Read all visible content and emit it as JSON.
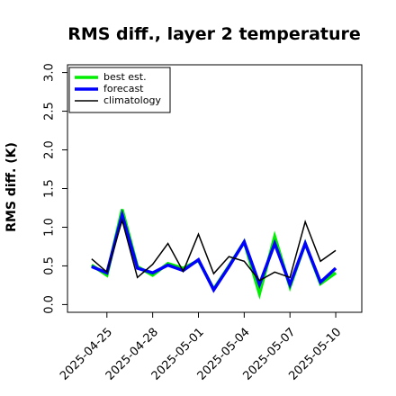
{
  "chart_data": {
    "type": "line",
    "title": "RMS diff., layer 2 temperature",
    "ylabel": "RMS diff. (K)",
    "x": [
      "2025-04-24",
      "2025-04-25",
      "2025-04-26",
      "2025-04-27",
      "2025-04-28",
      "2025-04-29",
      "2025-04-30",
      "2025-05-01",
      "2025-05-02",
      "2025-05-03",
      "2025-05-04",
      "2025-05-05",
      "2025-05-06",
      "2025-05-07",
      "2025-05-08",
      "2025-05-09",
      "2025-05-10"
    ],
    "series": [
      {
        "name": "best est.",
        "color": "#00ee00",
        "width": 3.5,
        "values": [
          0.51,
          0.38,
          1.23,
          0.49,
          0.38,
          0.53,
          0.47,
          0.57,
          0.2,
          0.5,
          0.81,
          0.14,
          0.88,
          0.23,
          0.79,
          0.27,
          0.41
        ]
      },
      {
        "name": "forecast",
        "color": "#0000ff",
        "width": 3.5,
        "values": [
          0.49,
          0.41,
          1.16,
          0.47,
          0.41,
          0.51,
          0.44,
          0.58,
          0.19,
          0.49,
          0.81,
          0.26,
          0.79,
          0.26,
          0.79,
          0.29,
          0.47
        ]
      },
      {
        "name": "climatology",
        "color": "#000000",
        "width": 1.5,
        "values": [
          0.59,
          0.42,
          1.09,
          0.35,
          0.52,
          0.79,
          0.43,
          0.91,
          0.4,
          0.62,
          0.56,
          0.31,
          0.42,
          0.35,
          1.07,
          0.56,
          0.7
        ]
      }
    ],
    "xlim": [
      "2025-04-22T10:00",
      "2025-05-11T17:00"
    ],
    "xticks": [
      "2025-04-25",
      "2025-04-28",
      "2025-05-01",
      "2025-05-04",
      "2025-05-07",
      "2025-05-10"
    ],
    "xtick_colors": [
      "#000000",
      "#000000",
      "#228b22",
      "#000000",
      "#000000",
      "#000000"
    ],
    "ylim": [
      -0.1,
      3.1
    ],
    "yticks": [
      {
        "value": 0,
        "label": "0.0"
      },
      {
        "value": 0.5,
        "label": "0.5"
      },
      {
        "value": 1,
        "label": "1.0"
      },
      {
        "value": 1.5,
        "label": "1.5"
      },
      {
        "value": 2,
        "label": "2.0"
      },
      {
        "value": 2.5,
        "label": "2.5"
      },
      {
        "value": 3,
        "label": "3.0"
      }
    ],
    "legend": "top-left"
  }
}
